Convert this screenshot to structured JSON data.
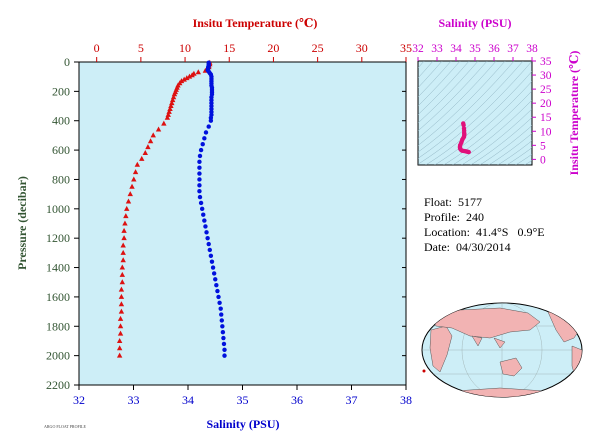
{
  "chart_data": [
    {
      "type": "scatter",
      "title": "",
      "ylabel": "Pressure (decibar)",
      "ylim": [
        2200,
        0
      ],
      "yticks": [
        0,
        200,
        400,
        600,
        800,
        1000,
        1200,
        1400,
        1600,
        1800,
        2000,
        2200
      ],
      "x_top": {
        "label": "Insitu Temperature (℃)",
        "range": [
          -2,
          35
        ],
        "ticks": [
          0,
          5,
          10,
          15,
          20,
          25,
          30,
          35
        ],
        "color": "#cc0000"
      },
      "x_bottom": {
        "label": "Salinity (PSU)",
        "range": [
          32,
          38
        ],
        "ticks": [
          32,
          33,
          34,
          35,
          36,
          37,
          38
        ],
        "color": "#0000cc"
      },
      "grid": false,
      "background": "#cdeef7",
      "series": [
        {
          "marker": "triangle",
          "color": "#dd1111",
          "axis": "top",
          "points": [
            [
              12.8,
              5
            ],
            [
              12.8,
              15
            ],
            [
              12.7,
              25
            ],
            [
              12.7,
              35
            ],
            [
              12.6,
              50
            ],
            [
              12.3,
              60
            ],
            [
              11.5,
              70
            ],
            [
              11.0,
              80
            ],
            [
              10.8,
              90
            ],
            [
              10.5,
              100
            ],
            [
              10.2,
              110
            ],
            [
              9.9,
              120
            ],
            [
              9.6,
              130
            ],
            [
              9.4,
              145
            ],
            [
              9.2,
              160
            ],
            [
              9.1,
              175
            ],
            [
              9.0,
              190
            ],
            [
              8.9,
              205
            ],
            [
              8.8,
              220
            ],
            [
              8.7,
              240
            ],
            [
              8.6,
              260
            ],
            [
              8.5,
              280
            ],
            [
              8.4,
              300
            ],
            [
              8.3,
              320
            ],
            [
              8.2,
              340
            ],
            [
              8.1,
              360
            ],
            [
              8.0,
              380
            ],
            [
              7.6,
              420
            ],
            [
              7.0,
              460
            ],
            [
              6.4,
              500
            ],
            [
              6.1,
              540
            ],
            [
              5.8,
              580
            ],
            [
              5.5,
              620
            ],
            [
              5.1,
              660
            ],
            [
              4.6,
              700
            ],
            [
              4.4,
              750
            ],
            [
              4.2,
              800
            ],
            [
              4.0,
              850
            ],
            [
              3.8,
              900
            ],
            [
              3.6,
              950
            ],
            [
              3.4,
              1000
            ],
            [
              3.3,
              1050
            ],
            [
              3.2,
              1100
            ],
            [
              3.1,
              1150
            ],
            [
              3.1,
              1200
            ],
            [
              3.0,
              1250
            ],
            [
              3.0,
              1300
            ],
            [
              3.0,
              1350
            ],
            [
              2.9,
              1400
            ],
            [
              2.9,
              1450
            ],
            [
              2.9,
              1500
            ],
            [
              2.8,
              1550
            ],
            [
              2.8,
              1600
            ],
            [
              2.8,
              1650
            ],
            [
              2.8,
              1700
            ],
            [
              2.7,
              1750
            ],
            [
              2.7,
              1800
            ],
            [
              2.7,
              1850
            ],
            [
              2.6,
              1900
            ],
            [
              2.6,
              1950
            ],
            [
              2.6,
              2000
            ]
          ]
        },
        {
          "marker": "circle",
          "color": "#0011dd",
          "axis": "bottom",
          "points": [
            [
              34.38,
              5
            ],
            [
              34.38,
              15
            ],
            [
              34.38,
              25
            ],
            [
              34.37,
              35
            ],
            [
              34.37,
              45
            ],
            [
              34.36,
              55
            ],
            [
              34.38,
              65
            ],
            [
              34.4,
              75
            ],
            [
              34.42,
              85
            ],
            [
              34.43,
              100
            ],
            [
              34.43,
              115
            ],
            [
              34.43,
              130
            ],
            [
              34.43,
              145
            ],
            [
              34.43,
              160
            ],
            [
              34.44,
              175
            ],
            [
              34.44,
              190
            ],
            [
              34.44,
              205
            ],
            [
              34.44,
              220
            ],
            [
              34.43,
              240
            ],
            [
              34.43,
              260
            ],
            [
              34.43,
              280
            ],
            [
              34.43,
              300
            ],
            [
              34.43,
              320
            ],
            [
              34.43,
              340
            ],
            [
              34.43,
              360
            ],
            [
              34.42,
              380
            ],
            [
              34.42,
              400
            ],
            [
              34.38,
              440
            ],
            [
              34.33,
              480
            ],
            [
              34.3,
              520
            ],
            [
              34.27,
              560
            ],
            [
              34.24,
              600
            ],
            [
              34.22,
              640
            ],
            [
              34.21,
              680
            ],
            [
              34.21,
              720
            ],
            [
              34.21,
              760
            ],
            [
              34.21,
              800
            ],
            [
              34.21,
              840
            ],
            [
              34.21,
              880
            ],
            [
              34.22,
              920
            ],
            [
              34.24,
              960
            ],
            [
              34.26,
              1000
            ],
            [
              34.28,
              1040
            ],
            [
              34.3,
              1080
            ],
            [
              34.32,
              1120
            ],
            [
              34.34,
              1160
            ],
            [
              34.36,
              1200
            ],
            [
              34.38,
              1240
            ],
            [
              34.4,
              1280
            ],
            [
              34.42,
              1320
            ],
            [
              34.44,
              1360
            ],
            [
              34.46,
              1400
            ],
            [
              34.48,
              1440
            ],
            [
              34.5,
              1480
            ],
            [
              34.52,
              1520
            ],
            [
              34.54,
              1560
            ],
            [
              34.56,
              1600
            ],
            [
              34.58,
              1640
            ],
            [
              34.6,
              1680
            ],
            [
              34.61,
              1720
            ],
            [
              34.62,
              1760
            ],
            [
              34.63,
              1800
            ],
            [
              34.64,
              1840
            ],
            [
              34.65,
              1880
            ],
            [
              34.66,
              1920
            ],
            [
              34.67,
              1960
            ],
            [
              34.67,
              2000
            ]
          ]
        }
      ]
    },
    {
      "type": "scatter",
      "title": "",
      "x_top": {
        "label": "Salinity (PSU)",
        "range": [
          32,
          38
        ],
        "ticks": [
          32,
          33,
          34,
          35,
          36,
          37,
          38
        ],
        "color": "#cc00cc"
      },
      "y_right": {
        "label": "Insitu Temperature (℃)",
        "range": [
          -2,
          35
        ],
        "ticks": [
          0,
          5,
          10,
          15,
          20,
          25,
          30,
          35
        ],
        "color": "#cc00cc"
      },
      "background": "#cdeef7",
      "density_contours": true,
      "series": [
        {
          "marker": "circle",
          "color": "#e0107a",
          "points": [
            [
              34.38,
              12.8
            ],
            [
              34.4,
              12.2
            ],
            [
              34.42,
              11.0
            ],
            [
              34.43,
              10.2
            ],
            [
              34.43,
              9.4
            ],
            [
              34.44,
              9.0
            ],
            [
              34.43,
              8.5
            ],
            [
              34.42,
              8.0
            ],
            [
              34.38,
              7.6
            ],
            [
              34.33,
              7.0
            ],
            [
              34.3,
              6.4
            ],
            [
              34.27,
              5.8
            ],
            [
              34.22,
              5.1
            ],
            [
              34.21,
              4.6
            ],
            [
              34.21,
              4.2
            ],
            [
              34.22,
              3.8
            ],
            [
              34.26,
              3.4
            ],
            [
              34.32,
              3.1
            ],
            [
              34.4,
              3.0
            ],
            [
              34.48,
              2.9
            ],
            [
              34.56,
              2.8
            ],
            [
              34.62,
              2.7
            ],
            [
              34.67,
              2.6
            ]
          ]
        }
      ]
    }
  ],
  "info": {
    "float": "Float:  5177",
    "profile": "Profile:  240",
    "location": "Location:  41.4°S   0.9°E",
    "date": "Date:  04/30/2014"
  },
  "fine_print": "ARGO FLOAT PROFILE"
}
